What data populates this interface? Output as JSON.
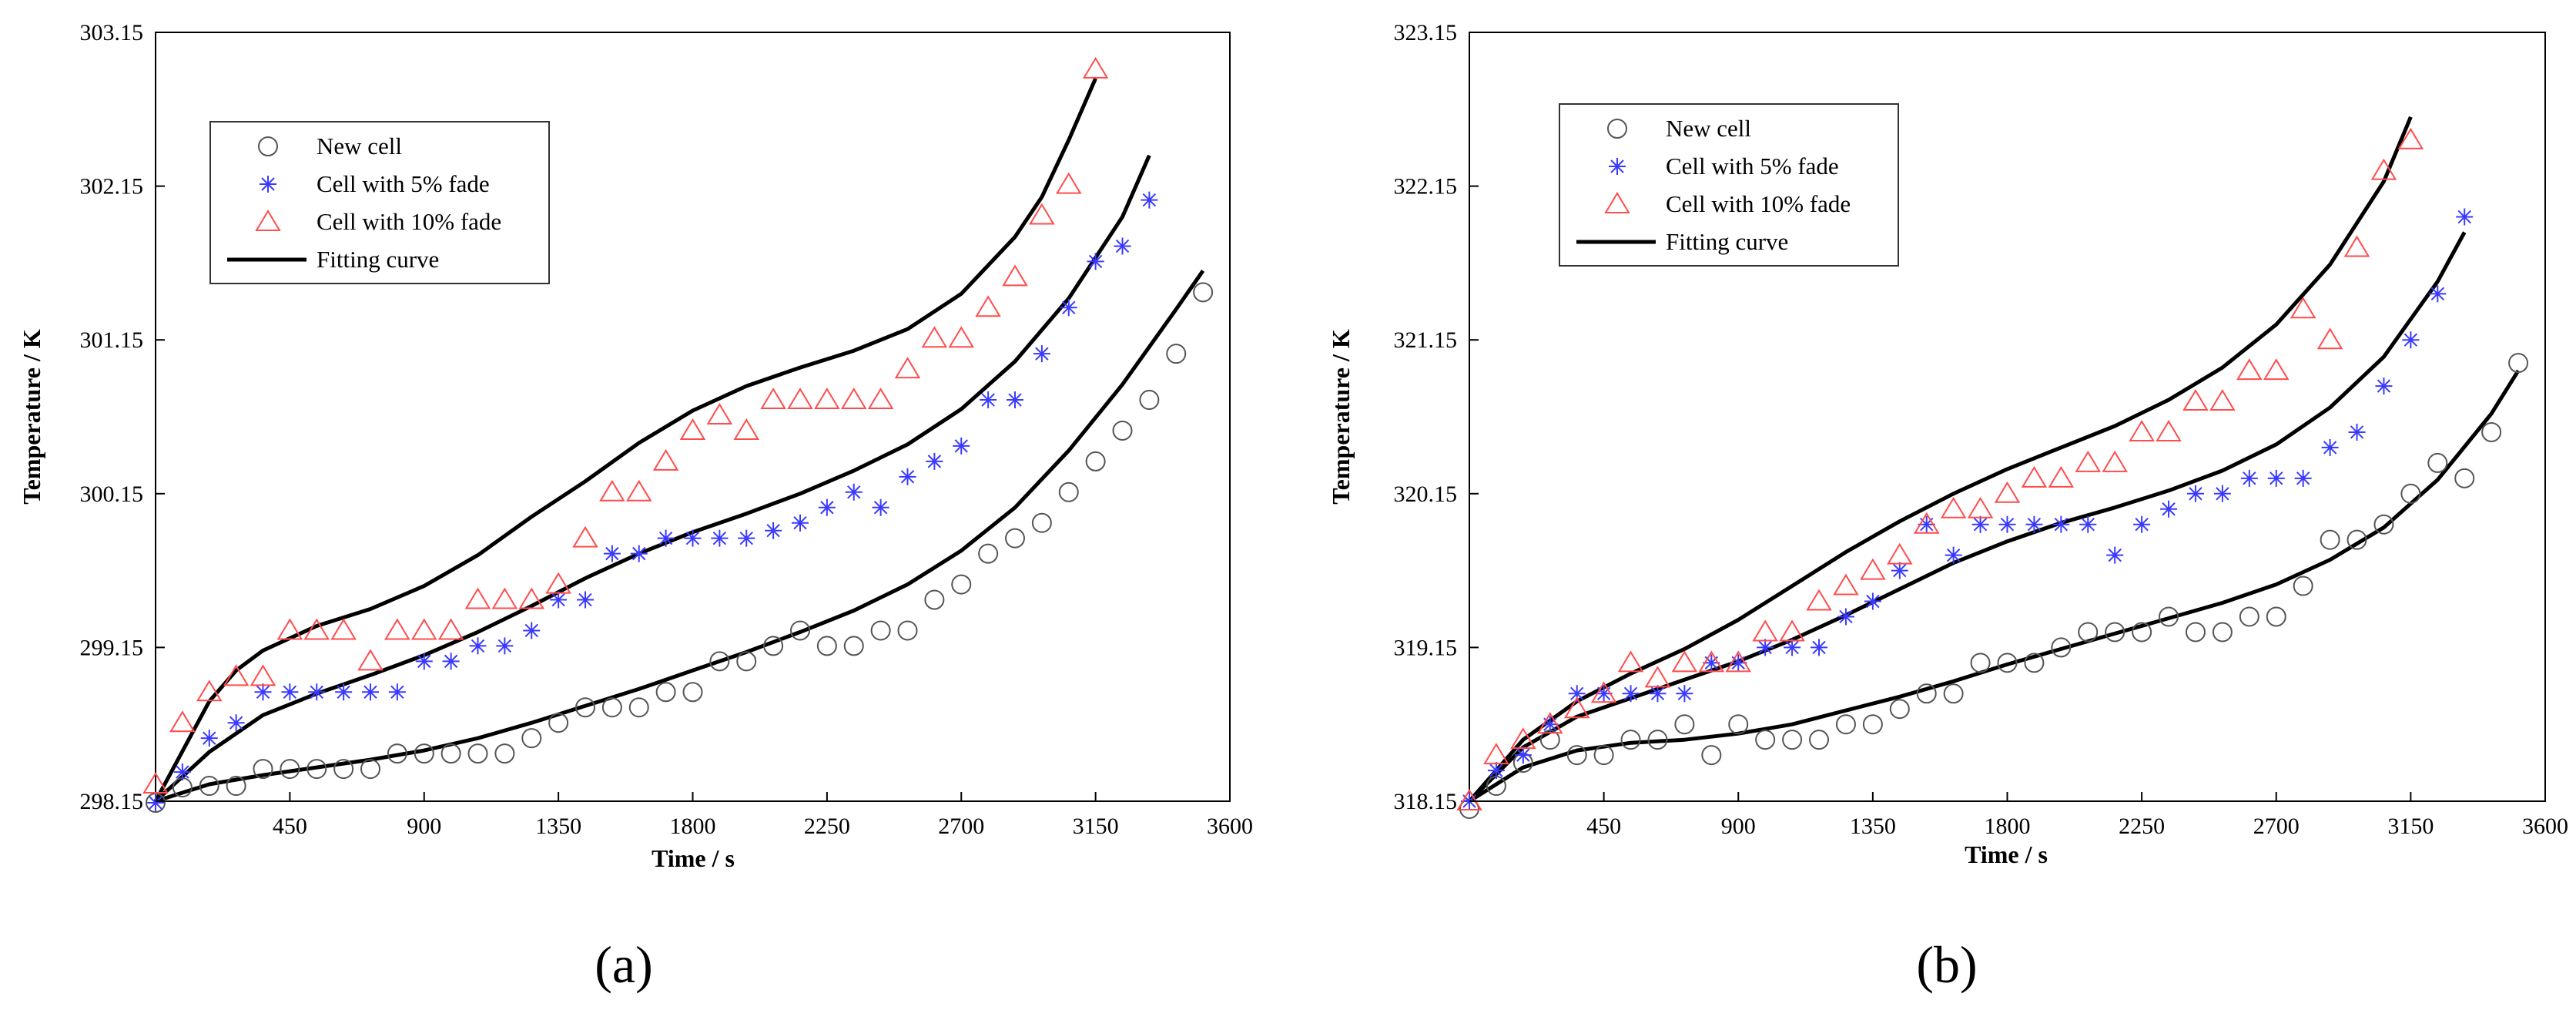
{
  "chart_data": [
    {
      "type": "scatter",
      "panel_label": "(a)",
      "xlabel": "Time / s",
      "ylabel": "Temperature / K",
      "xlim": [
        0,
        3600
      ],
      "ylim": [
        298.15,
        303.15
      ],
      "xticks": [
        450,
        900,
        1350,
        1800,
        2250,
        2700,
        3150,
        3600
      ],
      "yticks": [
        298.15,
        299.15,
        300.15,
        301.15,
        302.15,
        303.15
      ],
      "xtick_labels": [
        "450",
        "900",
        "1350",
        "1800",
        "2250",
        "2700",
        "3150",
        "3600"
      ],
      "ytick_labels": [
        "298.15",
        "299.15",
        "300.15",
        "301.15",
        "302.15",
        "303.15"
      ],
      "legend_position": "top-left",
      "series": [
        {
          "name": "New cell",
          "marker": "circle",
          "color": "#555555",
          "x": [
            0,
            90,
            180,
            270,
            360,
            450,
            540,
            630,
            720,
            810,
            900,
            990,
            1080,
            1170,
            1260,
            1350,
            1440,
            1530,
            1620,
            1710,
            1800,
            1890,
            1980,
            2070,
            2160,
            2250,
            2340,
            2430,
            2520,
            2610,
            2700,
            2790,
            2880,
            2970,
            3060,
            3150,
            3240,
            3330,
            3420,
            3510
          ],
          "y": [
            298.14,
            298.24,
            298.25,
            298.25,
            298.36,
            298.36,
            298.36,
            298.36,
            298.36,
            298.46,
            298.46,
            298.46,
            298.46,
            298.46,
            298.56,
            298.66,
            298.76,
            298.76,
            298.76,
            298.86,
            298.86,
            299.06,
            299.06,
            299.16,
            299.26,
            299.16,
            299.16,
            299.26,
            299.26,
            299.46,
            299.56,
            299.76,
            299.86,
            299.96,
            300.16,
            300.36,
            300.56,
            300.76,
            301.06,
            301.46
          ]
        },
        {
          "name": "Cell with 5% fade",
          "marker": "asterisk",
          "color": "#3a3aff",
          "x": [
            0,
            90,
            180,
            270,
            360,
            450,
            540,
            630,
            720,
            810,
            900,
            990,
            1080,
            1170,
            1260,
            1350,
            1440,
            1530,
            1620,
            1710,
            1800,
            1890,
            1980,
            2070,
            2160,
            2250,
            2340,
            2430,
            2520,
            2610,
            2700,
            2790,
            2880,
            2970,
            3060,
            3150,
            3240,
            3330
          ],
          "y": [
            298.14,
            298.34,
            298.56,
            298.66,
            298.86,
            298.86,
            298.86,
            298.86,
            298.86,
            298.86,
            299.06,
            299.06,
            299.16,
            299.16,
            299.26,
            299.46,
            299.46,
            299.76,
            299.76,
            299.86,
            299.86,
            299.86,
            299.86,
            299.91,
            299.96,
            300.06,
            300.16,
            300.06,
            300.26,
            300.36,
            300.46,
            300.76,
            300.76,
            301.06,
            301.36,
            301.66,
            301.76,
            302.06
          ]
        },
        {
          "name": "Cell with 10% fade",
          "marker": "triangle",
          "color": "#ff4c4c",
          "x": [
            0,
            90,
            180,
            270,
            360,
            450,
            540,
            630,
            720,
            810,
            900,
            990,
            1080,
            1170,
            1260,
            1350,
            1440,
            1530,
            1620,
            1710,
            1800,
            1890,
            1980,
            2070,
            2160,
            2250,
            2340,
            2430,
            2520,
            2610,
            2700,
            2790,
            2880,
            2970,
            3060,
            3150
          ],
          "y": [
            298.26,
            298.66,
            298.86,
            298.96,
            298.96,
            299.26,
            299.26,
            299.26,
            299.06,
            299.26,
            299.26,
            299.26,
            299.46,
            299.46,
            299.46,
            299.56,
            299.86,
            300.16,
            300.16,
            300.36,
            300.56,
            300.66,
            300.56,
            300.76,
            300.76,
            300.76,
            300.76,
            300.76,
            300.96,
            301.16,
            301.16,
            301.36,
            301.56,
            301.96,
            302.16,
            302.91
          ]
        }
      ],
      "fitting_curves": [
        {
          "name": "Fitting curve",
          "for": "New cell",
          "x": [
            0,
            180,
            360,
            540,
            720,
            900,
            1080,
            1260,
            1440,
            1620,
            1800,
            1980,
            2160,
            2340,
            2520,
            2700,
            2880,
            3060,
            3240,
            3420,
            3510
          ],
          "y": [
            298.15,
            298.26,
            298.32,
            298.37,
            298.42,
            298.48,
            298.56,
            298.66,
            298.77,
            298.88,
            299.0,
            299.12,
            299.25,
            299.39,
            299.56,
            299.78,
            300.06,
            300.43,
            300.86,
            301.35,
            301.6
          ]
        },
        {
          "name": "Fitting curve",
          "for": "Cell with 5% fade",
          "x": [
            0,
            180,
            360,
            540,
            720,
            900,
            1080,
            1260,
            1440,
            1620,
            1800,
            1980,
            2160,
            2340,
            2520,
            2700,
            2880,
            3060,
            3240,
            3330
          ],
          "y": [
            298.15,
            298.47,
            298.71,
            298.85,
            298.97,
            299.1,
            299.25,
            299.42,
            299.6,
            299.76,
            299.9,
            300.02,
            300.15,
            300.3,
            300.47,
            300.7,
            301.01,
            301.42,
            301.95,
            302.35
          ]
        },
        {
          "name": "Fitting curve",
          "for": "Cell with 10% fade",
          "x": [
            0,
            180,
            270,
            360,
            540,
            720,
            900,
            1080,
            1260,
            1440,
            1620,
            1800,
            1980,
            2160,
            2340,
            2520,
            2700,
            2880,
            2970,
            3060,
            3150
          ],
          "y": [
            298.15,
            298.8,
            299.0,
            299.13,
            299.29,
            299.4,
            299.55,
            299.75,
            300.0,
            300.23,
            300.48,
            300.69,
            300.85,
            300.97,
            301.08,
            301.22,
            301.45,
            301.82,
            302.08,
            302.45,
            302.85
          ]
        }
      ]
    },
    {
      "type": "scatter",
      "panel_label": "(b)",
      "xlabel": "Time / s",
      "ylabel": "Temperature / K",
      "xlim": [
        0,
        3600
      ],
      "ylim": [
        318.15,
        323.15
      ],
      "xticks": [
        450,
        900,
        1350,
        1800,
        2250,
        2700,
        3150,
        3600
      ],
      "yticks": [
        318.15,
        319.15,
        320.15,
        321.15,
        322.15,
        323.15
      ],
      "xtick_labels": [
        "450",
        "900",
        "1350",
        "1800",
        "2250",
        "2700",
        "3150",
        "3600"
      ],
      "ytick_labels": [
        "318.15",
        "319.15",
        "320.15",
        "321.15",
        "322.15",
        "323.15"
      ],
      "legend_position": "top-left",
      "series": [
        {
          "name": "New cell",
          "marker": "circle",
          "color": "#555555",
          "x": [
            0,
            90,
            180,
            270,
            360,
            450,
            540,
            630,
            720,
            810,
            900,
            990,
            1080,
            1170,
            1260,
            1350,
            1440,
            1530,
            1620,
            1710,
            1800,
            1890,
            1980,
            2070,
            2160,
            2250,
            2340,
            2430,
            2520,
            2610,
            2700,
            2790,
            2880,
            2970,
            3060,
            3150,
            3240,
            3330,
            3420,
            3510
          ],
          "y": [
            318.1,
            318.25,
            318.4,
            318.55,
            318.45,
            318.45,
            318.55,
            318.55,
            318.65,
            318.45,
            318.65,
            318.55,
            318.55,
            318.55,
            318.65,
            318.65,
            318.75,
            318.85,
            318.85,
            319.05,
            319.05,
            319.05,
            319.15,
            319.25,
            319.25,
            319.25,
            319.35,
            319.25,
            319.25,
            319.35,
            319.35,
            319.55,
            319.85,
            319.85,
            319.95,
            320.15,
            320.35,
            320.25,
            320.55,
            321.0
          ]
        },
        {
          "name": "Cell with 5% fade",
          "marker": "asterisk",
          "color": "#3a3aff",
          "x": [
            0,
            90,
            180,
            270,
            360,
            450,
            540,
            630,
            720,
            810,
            900,
            990,
            1080,
            1170,
            1260,
            1350,
            1440,
            1530,
            1620,
            1710,
            1800,
            1890,
            1980,
            2070,
            2160,
            2250,
            2340,
            2430,
            2520,
            2610,
            2700,
            2790,
            2880,
            2970,
            3060,
            3150,
            3240,
            3330
          ],
          "y": [
            318.15,
            318.35,
            318.45,
            318.65,
            318.85,
            318.85,
            318.85,
            318.85,
            318.85,
            319.05,
            319.05,
            319.15,
            319.15,
            319.15,
            319.35,
            319.45,
            319.65,
            319.95,
            319.75,
            319.95,
            319.95,
            319.95,
            319.95,
            319.95,
            319.75,
            319.95,
            320.05,
            320.15,
            320.15,
            320.25,
            320.25,
            320.25,
            320.45,
            320.55,
            320.85,
            321.15,
            321.45,
            321.95
          ]
        },
        {
          "name": "Cell with 10% fade",
          "marker": "triangle",
          "color": "#ff4c4c",
          "x": [
            0,
            90,
            180,
            270,
            360,
            450,
            540,
            630,
            720,
            810,
            900,
            990,
            1080,
            1170,
            1260,
            1350,
            1440,
            1530,
            1620,
            1710,
            1800,
            1890,
            1980,
            2070,
            2160,
            2250,
            2340,
            2430,
            2520,
            2610,
            2700,
            2790,
            2880,
            2970,
            3060,
            3150
          ],
          "y": [
            318.15,
            318.45,
            318.55,
            318.65,
            318.75,
            318.85,
            319.05,
            318.95,
            319.05,
            319.05,
            319.05,
            319.25,
            319.25,
            319.45,
            319.55,
            319.65,
            319.75,
            319.95,
            320.05,
            320.05,
            320.15,
            320.25,
            320.25,
            320.35,
            320.35,
            320.55,
            320.55,
            320.75,
            320.75,
            320.95,
            320.95,
            321.35,
            321.15,
            321.75,
            322.25,
            322.45
          ]
        }
      ],
      "fitting_curves": [
        {
          "name": "Fitting curve",
          "for": "New cell",
          "x": [
            0,
            180,
            360,
            540,
            720,
            900,
            1080,
            1260,
            1440,
            1620,
            1800,
            1980,
            2160,
            2340,
            2520,
            2700,
            2880,
            3060,
            3240,
            3420,
            3510
          ],
          "y": [
            318.15,
            318.37,
            318.48,
            318.53,
            318.55,
            318.59,
            318.65,
            318.74,
            318.83,
            318.93,
            319.04,
            319.14,
            319.24,
            319.34,
            319.44,
            319.56,
            319.72,
            319.93,
            320.24,
            320.67,
            320.95
          ]
        },
        {
          "name": "Fitting curve",
          "for": "Cell with 5% fade",
          "x": [
            0,
            180,
            360,
            540,
            720,
            900,
            1080,
            1260,
            1440,
            1620,
            1800,
            1980,
            2160,
            2340,
            2520,
            2700,
            2880,
            3060,
            3240,
            3330
          ],
          "y": [
            318.15,
            318.5,
            318.7,
            318.82,
            318.94,
            319.06,
            319.2,
            319.36,
            319.53,
            319.7,
            319.84,
            319.96,
            320.06,
            320.17,
            320.3,
            320.47,
            320.71,
            321.04,
            321.53,
            321.85
          ]
        },
        {
          "name": "Fitting curve",
          "for": "Cell with 10% fade",
          "x": [
            0,
            180,
            360,
            540,
            720,
            900,
            1080,
            1260,
            1440,
            1620,
            1800,
            1980,
            2160,
            2340,
            2520,
            2700,
            2880,
            3060,
            3150
          ],
          "y": [
            318.15,
            318.55,
            318.8,
            318.98,
            319.14,
            319.33,
            319.55,
            319.77,
            319.97,
            320.15,
            320.31,
            320.45,
            320.59,
            320.76,
            320.97,
            321.25,
            321.64,
            322.18,
            322.6
          ]
        }
      ]
    }
  ]
}
